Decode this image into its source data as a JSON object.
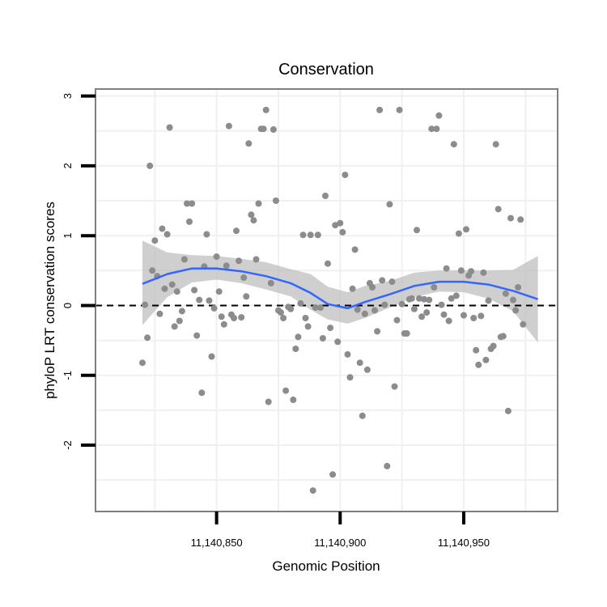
{
  "chart_data": {
    "type": "scatter",
    "title": "Conservation",
    "xlabel": "Genomic Position",
    "ylabel": "phyloP LRT conservation scores",
    "xlim": [
      11140801,
      11140988
    ],
    "ylim": [
      -2.95,
      3.1
    ],
    "x_ticks": [
      11140850,
      11140900,
      11140950
    ],
    "x_tick_labels": [
      "11,140,850",
      "11,140,900",
      "11,140,950"
    ],
    "y_ticks": [
      -2,
      -1,
      0,
      1,
      2,
      3
    ],
    "y_tick_labels": [
      "-2",
      "-1",
      "0",
      "1",
      "2",
      "3"
    ],
    "grid": true,
    "reference_line": {
      "y": 0,
      "style": "dashed"
    },
    "colors": {
      "points": "#8c8c8c",
      "smooth_line": "#3366ff",
      "confidence_band": "#bfbfbf",
      "grid": "#f0f0f0",
      "panel_border": "#7f7f7f"
    },
    "points": [
      [
        11140820,
        -0.82
      ],
      [
        11140821,
        0.01
      ],
      [
        11140822,
        -0.46
      ],
      [
        11140823,
        2.0
      ],
      [
        11140824,
        0.5
      ],
      [
        11140825,
        0.93
      ],
      [
        11140826,
        0.42
      ],
      [
        11140827,
        -0.12
      ],
      [
        11140828,
        1.1
      ],
      [
        11140829,
        0.24
      ],
      [
        11140830,
        1.02
      ],
      [
        11140831,
        2.55
      ],
      [
        11140832,
        0.3
      ],
      [
        11140833,
        -0.3
      ],
      [
        11140834,
        0.2
      ],
      [
        11140835,
        -0.22
      ],
      [
        11140836,
        -0.08
      ],
      [
        11140837,
        0.66
      ],
      [
        11140838,
        1.46
      ],
      [
        11140839,
        1.2
      ],
      [
        11140840,
        1.46
      ],
      [
        11140841,
        0.22
      ],
      [
        11140842,
        -0.43
      ],
      [
        11140843,
        0.08
      ],
      [
        11140844,
        -1.25
      ],
      [
        11140845,
        0.56
      ],
      [
        11140846,
        1.02
      ],
      [
        11140847,
        0.07
      ],
      [
        11140848,
        -0.73
      ],
      [
        11140849,
        -0.04
      ],
      [
        11140850,
        0.7
      ],
      [
        11140851,
        0.2
      ],
      [
        11140852,
        -0.16
      ],
      [
        11140853,
        -0.27
      ],
      [
        11140854,
        0.57
      ],
      [
        11140855,
        2.57
      ],
      [
        11140856,
        -0.13
      ],
      [
        11140857,
        -0.18
      ],
      [
        11140858,
        1.07
      ],
      [
        11140859,
        0.64
      ],
      [
        11140860,
        -0.17
      ],
      [
        11140861,
        0.4
      ],
      [
        11140862,
        0.13
      ],
      [
        11140863,
        2.32
      ],
      [
        11140864,
        1.3
      ],
      [
        11140865,
        1.22
      ],
      [
        11140866,
        0.66
      ],
      [
        11140867,
        1.46
      ],
      [
        11140868,
        2.53
      ],
      [
        11140869,
        2.53
      ],
      [
        11140870,
        2.8
      ],
      [
        11140871,
        -1.38
      ],
      [
        11140872,
        0.32
      ],
      [
        11140873,
        2.52
      ],
      [
        11140874,
        1.5
      ],
      [
        11140875,
        -0.07
      ],
      [
        11140876,
        -0.1
      ],
      [
        11140877,
        -0.18
      ],
      [
        11140878,
        -1.22
      ],
      [
        11140879,
        -0.02
      ],
      [
        11140880,
        -0.05
      ],
      [
        11140881,
        -1.35
      ],
      [
        11140882,
        -0.62
      ],
      [
        11140883,
        -0.45
      ],
      [
        11140884,
        0.03
      ],
      [
        11140885,
        1.01
      ],
      [
        11140886,
        -0.18
      ],
      [
        11140887,
        -0.3
      ],
      [
        11140888,
        1.01
      ],
      [
        11140889,
        -2.65
      ],
      [
        11140890,
        -0.03
      ],
      [
        11140891,
        1.01
      ],
      [
        11140892,
        -0.03
      ],
      [
        11140893,
        -0.47
      ],
      [
        11140894,
        1.57
      ],
      [
        11140895,
        0.6
      ],
      [
        11140896,
        -0.32
      ],
      [
        11140897,
        -2.42
      ],
      [
        11140898,
        1.15
      ],
      [
        11140899,
        -0.52
      ],
      [
        11140900,
        1.18
      ],
      [
        11140901,
        1.05
      ],
      [
        11140902,
        1.87
      ],
      [
        11140903,
        -0.7
      ],
      [
        11140904,
        -1.03
      ],
      [
        11140905,
        0.24
      ],
      [
        11140906,
        0.8
      ],
      [
        11140907,
        -0.06
      ],
      [
        11140908,
        -0.82
      ],
      [
        11140909,
        -1.58
      ],
      [
        11140910,
        -0.12
      ],
      [
        11140911,
        -0.92
      ],
      [
        11140912,
        0.32
      ],
      [
        11140913,
        0.26
      ],
      [
        11140914,
        -0.07
      ],
      [
        11140915,
        -0.37
      ],
      [
        11140916,
        2.8
      ],
      [
        11140917,
        0.36
      ],
      [
        11140918,
        0.01
      ],
      [
        11140919,
        -2.3
      ],
      [
        11140920,
        1.45
      ],
      [
        11140921,
        0.34
      ],
      [
        11140922,
        -1.16
      ],
      [
        11140923,
        -0.21
      ],
      [
        11140924,
        2.8
      ],
      [
        11140925,
        0.02
      ],
      [
        11140926,
        -0.4
      ],
      [
        11140927,
        -0.4
      ],
      [
        11140928,
        0.09
      ],
      [
        11140929,
        0.1
      ],
      [
        11140930,
        -0.05
      ],
      [
        11140931,
        1.08
      ],
      [
        11140932,
        0.1
      ],
      [
        11140933,
        -0.16
      ],
      [
        11140934,
        0.09
      ],
      [
        11140935,
        -0.1
      ],
      [
        11140936,
        0.08
      ],
      [
        11140937,
        2.53
      ],
      [
        11140938,
        0.26
      ],
      [
        11140939,
        2.53
      ],
      [
        11140940,
        2.72
      ],
      [
        11140941,
        0.01
      ],
      [
        11140942,
        -0.13
      ],
      [
        11140943,
        0.53
      ],
      [
        11140944,
        -0.22
      ],
      [
        11140945,
        0.1
      ],
      [
        11140946,
        2.31
      ],
      [
        11140947,
        0.14
      ],
      [
        11140948,
        1.03
      ],
      [
        11140949,
        0.5
      ],
      [
        11140950,
        -0.14
      ],
      [
        11140951,
        1.09
      ],
      [
        11140952,
        0.43
      ],
      [
        11140953,
        0.49
      ],
      [
        11140954,
        -0.18
      ],
      [
        11140955,
        -0.64
      ],
      [
        11140956,
        -0.85
      ],
      [
        11140957,
        -0.15
      ],
      [
        11140958,
        0.47
      ],
      [
        11140959,
        -0.78
      ],
      [
        11140960,
        0.07
      ],
      [
        11140961,
        -0.62
      ],
      [
        11140962,
        -0.58
      ],
      [
        11140963,
        2.31
      ],
      [
        11140964,
        1.38
      ],
      [
        11140965,
        -0.45
      ],
      [
        11140966,
        -0.44
      ],
      [
        11140967,
        0.17
      ],
      [
        11140968,
        -1.51
      ],
      [
        11140969,
        1.25
      ],
      [
        11140970,
        0.08
      ],
      [
        11140971,
        -0.07
      ],
      [
        11140972,
        0.26
      ],
      [
        11140973,
        1.23
      ],
      [
        11140974,
        -0.27
      ]
    ],
    "smooth": {
      "x": [
        11140820,
        11140830,
        11140840,
        11140850,
        11140860,
        11140870,
        11140880,
        11140888,
        11140895,
        11140903,
        11140910,
        11140920,
        11140930,
        11140940,
        11140950,
        11140960,
        11140970,
        11140980
      ],
      "y": [
        0.31,
        0.45,
        0.53,
        0.53,
        0.49,
        0.42,
        0.32,
        0.18,
        0.02,
        -0.04,
        0.05,
        0.16,
        0.28,
        0.34,
        0.34,
        0.3,
        0.21,
        0.09
      ],
      "se_lower": [
        -0.28,
        0.12,
        0.33,
        0.37,
        0.32,
        0.23,
        0.13,
        -0.06,
        -0.2,
        -0.26,
        -0.18,
        -0.03,
        0.12,
        0.2,
        0.19,
        0.1,
        -0.08,
        -0.53
      ],
      "se_upper": [
        0.93,
        0.76,
        0.72,
        0.71,
        0.67,
        0.62,
        0.52,
        0.45,
        0.27,
        0.19,
        0.28,
        0.35,
        0.47,
        0.5,
        0.5,
        0.5,
        0.51,
        0.71
      ]
    }
  }
}
